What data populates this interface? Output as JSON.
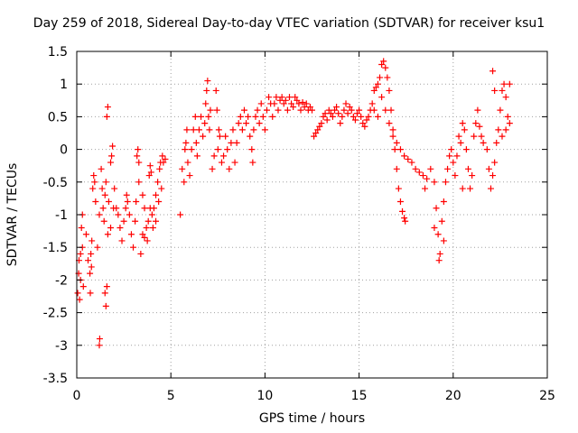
{
  "chart_data": {
    "type": "scatter",
    "title": "Day 259 of 2018, Sidereal Day-to-day VTEC variation (SDTVAR) for receiver ksu1",
    "xlabel": "GPS time / hours",
    "ylabel": "SDTVAR / TECUs",
    "xlim": [
      0,
      25
    ],
    "ylim": [
      -3.5,
      1.5
    ],
    "xticks": [
      0,
      5,
      10,
      15,
      20,
      25
    ],
    "yticks": [
      -3.5,
      -3,
      -2.5,
      -2,
      -1.5,
      -1,
      -0.5,
      0,
      0.5,
      1,
      1.5
    ],
    "xtick_labels": [
      "0",
      "5",
      "10",
      "15",
      "20",
      "25"
    ],
    "ytick_labels": [
      "-3.5",
      "-3",
      "-2.5",
      "-2",
      "-1.5",
      "-1",
      "-0.5",
      "0",
      "0.5",
      "1",
      "1.5"
    ],
    "grid": true,
    "marker": "+",
    "series_color": "#ff0000",
    "series": [
      {
        "name": "SDTVAR",
        "points": [
          [
            0.05,
            -2.2
          ],
          [
            0.1,
            -1.9
          ],
          [
            0.15,
            -2.3
          ],
          [
            0.2,
            -1.6
          ],
          [
            0.25,
            -1.2
          ],
          [
            0.3,
            -1.0
          ],
          [
            0.35,
            -2.1
          ],
          [
            0.2,
            -2.0
          ],
          [
            0.12,
            -1.7
          ],
          [
            0.3,
            -1.5
          ],
          [
            0.5,
            -1.3
          ],
          [
            0.6,
            -1.7
          ],
          [
            0.7,
            -1.9
          ],
          [
            0.75,
            -1.6
          ],
          [
            0.8,
            -1.4
          ],
          [
            0.72,
            -2.2
          ],
          [
            0.78,
            -1.8
          ],
          [
            0.85,
            -0.6
          ],
          [
            0.9,
            -0.4
          ],
          [
            0.95,
            -0.5
          ],
          [
            1.0,
            -0.8
          ],
          [
            1.1,
            -1.5
          ],
          [
            1.2,
            -1.0
          ],
          [
            1.3,
            -0.3
          ],
          [
            1.35,
            -0.6
          ],
          [
            1.4,
            -0.9
          ],
          [
            1.45,
            -1.1
          ],
          [
            1.5,
            -0.7
          ],
          [
            1.55,
            -0.5
          ],
          [
            1.6,
            0.5
          ],
          [
            1.65,
            0.65
          ],
          [
            1.5,
            -2.2
          ],
          [
            1.55,
            -2.4
          ],
          [
            1.6,
            -2.1
          ],
          [
            1.65,
            -1.3
          ],
          [
            1.7,
            -0.8
          ],
          [
            1.8,
            -0.2
          ],
          [
            1.85,
            -0.1
          ],
          [
            1.9,
            0.05
          ],
          [
            1.2,
            -3.0
          ],
          [
            1.22,
            -2.9
          ],
          [
            1.8,
            -1.2
          ],
          [
            1.95,
            -0.9
          ],
          [
            2.0,
            -0.6
          ],
          [
            2.1,
            -0.9
          ],
          [
            2.2,
            -1.0
          ],
          [
            2.3,
            -1.2
          ],
          [
            2.4,
            -1.4
          ],
          [
            2.5,
            -1.1
          ],
          [
            2.6,
            -0.9
          ],
          [
            2.65,
            -0.7
          ],
          [
            2.7,
            -0.8
          ],
          [
            2.8,
            -1.0
          ],
          [
            2.9,
            -1.3
          ],
          [
            3.0,
            -1.5
          ],
          [
            3.1,
            -1.1
          ],
          [
            3.15,
            -0.8
          ],
          [
            3.2,
            -0.1
          ],
          [
            3.25,
            0.0
          ],
          [
            3.3,
            -0.2
          ],
          [
            3.4,
            -1.6
          ],
          [
            3.5,
            -1.3
          ],
          [
            3.6,
            -0.9
          ],
          [
            3.7,
            -1.2
          ],
          [
            3.75,
            -1.4
          ],
          [
            3.8,
            -1.1
          ],
          [
            3.85,
            -0.4
          ],
          [
            3.9,
            -0.25
          ],
          [
            3.95,
            -0.35
          ],
          [
            4.0,
            -1.0
          ],
          [
            4.05,
            -1.2
          ],
          [
            4.1,
            -0.9
          ],
          [
            4.2,
            -0.7
          ],
          [
            4.3,
            -0.5
          ],
          [
            4.35,
            -0.8
          ],
          [
            4.4,
            -0.3
          ],
          [
            4.45,
            -0.2
          ],
          [
            4.5,
            -0.6
          ],
          [
            4.55,
            -0.1
          ],
          [
            4.6,
            -0.2
          ],
          [
            4.7,
            -0.15
          ],
          [
            3.3,
            -0.5
          ],
          [
            3.5,
            -0.7
          ],
          [
            3.9,
            -0.9
          ],
          [
            4.2,
            -1.1
          ],
          [
            3.6,
            -1.35
          ],
          [
            5.5,
            -1.0
          ],
          [
            5.6,
            -0.3
          ],
          [
            5.7,
            -0.5
          ],
          [
            5.75,
            0.0
          ],
          [
            5.8,
            0.1
          ],
          [
            5.85,
            0.3
          ],
          [
            5.9,
            -0.2
          ],
          [
            6.0,
            -0.4
          ],
          [
            6.1,
            0.0
          ],
          [
            6.2,
            0.3
          ],
          [
            6.3,
            0.5
          ],
          [
            6.35,
            0.1
          ],
          [
            6.4,
            -0.1
          ],
          [
            6.5,
            0.3
          ],
          [
            6.6,
            0.5
          ],
          [
            6.7,
            0.2
          ],
          [
            6.8,
            0.4
          ],
          [
            6.85,
            0.7
          ],
          [
            6.9,
            0.9
          ],
          [
            6.95,
            1.05
          ],
          [
            7.0,
            0.5
          ],
          [
            7.05,
            0.3
          ],
          [
            7.1,
            0.6
          ],
          [
            7.2,
            -0.3
          ],
          [
            7.3,
            -0.1
          ],
          [
            7.4,
            0.9
          ],
          [
            7.45,
            0.6
          ],
          [
            7.5,
            0.0
          ],
          [
            7.55,
            0.3
          ],
          [
            7.6,
            0.2
          ],
          [
            7.7,
            -0.2
          ],
          [
            7.8,
            -0.1
          ],
          [
            7.9,
            0.2
          ],
          [
            8.0,
            0.0
          ],
          [
            8.1,
            -0.3
          ],
          [
            8.2,
            0.1
          ],
          [
            8.3,
            0.3
          ],
          [
            8.4,
            -0.2
          ],
          [
            8.5,
            0.1
          ],
          [
            8.6,
            0.4
          ],
          [
            8.7,
            0.5
          ],
          [
            8.8,
            0.3
          ],
          [
            8.9,
            0.6
          ],
          [
            9.0,
            0.4
          ],
          [
            9.1,
            0.5
          ],
          [
            9.2,
            0.2
          ],
          [
            9.3,
            0.0
          ],
          [
            9.35,
            -0.2
          ],
          [
            9.4,
            0.3
          ],
          [
            9.5,
            0.5
          ],
          [
            9.6,
            0.6
          ],
          [
            9.7,
            0.4
          ],
          [
            9.8,
            0.7
          ],
          [
            9.9,
            0.5
          ],
          [
            10.0,
            0.3
          ],
          [
            10.1,
            0.6
          ],
          [
            10.2,
            0.8
          ],
          [
            10.3,
            0.7
          ],
          [
            10.4,
            0.5
          ],
          [
            10.5,
            0.7
          ],
          [
            10.6,
            0.8
          ],
          [
            10.7,
            0.6
          ],
          [
            10.8,
            0.75
          ],
          [
            10.9,
            0.8
          ],
          [
            11.0,
            0.7
          ],
          [
            11.1,
            0.75
          ],
          [
            11.2,
            0.6
          ],
          [
            11.3,
            0.8
          ],
          [
            11.4,
            0.7
          ],
          [
            11.5,
            0.65
          ],
          [
            11.6,
            0.8
          ],
          [
            11.7,
            0.75
          ],
          [
            11.8,
            0.7
          ],
          [
            11.9,
            0.6
          ],
          [
            12.0,
            0.72
          ],
          [
            12.1,
            0.65
          ],
          [
            12.2,
            0.7
          ],
          [
            12.3,
            0.6
          ],
          [
            12.4,
            0.65
          ],
          [
            12.5,
            0.6
          ],
          [
            12.6,
            0.2
          ],
          [
            12.7,
            0.25
          ],
          [
            12.8,
            0.3
          ],
          [
            12.9,
            0.35
          ],
          [
            13.0,
            0.4
          ],
          [
            13.1,
            0.5
          ],
          [
            13.2,
            0.55
          ],
          [
            13.3,
            0.45
          ],
          [
            13.4,
            0.6
          ],
          [
            13.5,
            0.55
          ],
          [
            13.6,
            0.5
          ],
          [
            13.7,
            0.6
          ],
          [
            13.8,
            0.65
          ],
          [
            13.9,
            0.55
          ],
          [
            14.0,
            0.4
          ],
          [
            14.1,
            0.5
          ],
          [
            14.2,
            0.6
          ],
          [
            14.3,
            0.7
          ],
          [
            14.4,
            0.55
          ],
          [
            14.5,
            0.65
          ],
          [
            14.6,
            0.6
          ],
          [
            14.7,
            0.5
          ],
          [
            14.8,
            0.45
          ],
          [
            14.9,
            0.55
          ],
          [
            15.0,
            0.6
          ],
          [
            15.1,
            0.5
          ],
          [
            15.2,
            0.4
          ],
          [
            15.3,
            0.35
          ],
          [
            15.4,
            0.45
          ],
          [
            15.5,
            0.5
          ],
          [
            15.6,
            0.6
          ],
          [
            15.7,
            0.7
          ],
          [
            15.8,
            0.9
          ],
          [
            15.9,
            0.95
          ],
          [
            16.0,
            1.0
          ],
          [
            16.1,
            1.1
          ],
          [
            16.2,
            1.3
          ],
          [
            16.3,
            1.35
          ],
          [
            16.4,
            1.25
          ],
          [
            16.5,
            1.1
          ],
          [
            16.6,
            0.9
          ],
          [
            16.7,
            0.6
          ],
          [
            16.8,
            0.3
          ],
          [
            16.9,
            0.0
          ],
          [
            17.0,
            -0.3
          ],
          [
            17.1,
            -0.6
          ],
          [
            17.2,
            -0.8
          ],
          [
            17.3,
            -0.95
          ],
          [
            17.4,
            -1.05
          ],
          [
            17.45,
            -1.1
          ],
          [
            15.8,
            0.6
          ],
          [
            16.0,
            0.5
          ],
          [
            16.2,
            0.8
          ],
          [
            16.4,
            0.6
          ],
          [
            16.6,
            0.4
          ],
          [
            16.8,
            0.2
          ],
          [
            17.0,
            0.1
          ],
          [
            17.2,
            0.0
          ],
          [
            17.4,
            -0.1
          ],
          [
            17.6,
            -0.15
          ],
          [
            17.8,
            -0.2
          ],
          [
            18.0,
            -0.3
          ],
          [
            18.2,
            -0.35
          ],
          [
            18.4,
            -0.4
          ],
          [
            18.6,
            -0.45
          ],
          [
            18.8,
            -0.3
          ],
          [
            19.0,
            -0.5
          ],
          [
            19.1,
            -0.9
          ],
          [
            19.2,
            -1.3
          ],
          [
            19.3,
            -1.6
          ],
          [
            19.25,
            -1.7
          ],
          [
            19.4,
            -1.1
          ],
          [
            19.5,
            -0.8
          ],
          [
            19.6,
            -0.5
          ],
          [
            19.7,
            -0.3
          ],
          [
            19.8,
            -0.1
          ],
          [
            19.9,
            0.0
          ],
          [
            20.0,
            -0.2
          ],
          [
            20.1,
            -0.4
          ],
          [
            20.2,
            -0.1
          ],
          [
            20.3,
            0.2
          ],
          [
            20.4,
            0.1
          ],
          [
            20.5,
            0.4
          ],
          [
            20.6,
            0.3
          ],
          [
            20.7,
            0.0
          ],
          [
            20.8,
            -0.3
          ],
          [
            20.9,
            -0.6
          ],
          [
            21.0,
            -0.4
          ],
          [
            21.1,
            0.2
          ],
          [
            21.2,
            0.4
          ],
          [
            21.3,
            0.6
          ],
          [
            21.4,
            0.35
          ],
          [
            21.5,
            0.2
          ],
          [
            21.6,
            0.1
          ],
          [
            21.8,
            0.0
          ],
          [
            21.9,
            -0.3
          ],
          [
            22.0,
            -0.6
          ],
          [
            22.1,
            -0.4
          ],
          [
            22.2,
            -0.2
          ],
          [
            22.3,
            0.1
          ],
          [
            22.4,
            0.3
          ],
          [
            22.5,
            0.6
          ],
          [
            22.6,
            0.9
          ],
          [
            22.7,
            1.0
          ],
          [
            22.8,
            0.8
          ],
          [
            22.9,
            0.5
          ],
          [
            23.0,
            1.0
          ],
          [
            22.1,
            1.2
          ],
          [
            22.2,
            0.9
          ],
          [
            22.6,
            0.2
          ],
          [
            22.8,
            0.3
          ],
          [
            23.0,
            0.4
          ],
          [
            19.0,
            -1.2
          ],
          [
            19.5,
            -1.4
          ],
          [
            18.5,
            -0.6
          ],
          [
            20.5,
            -0.6
          ]
        ]
      }
    ]
  }
}
